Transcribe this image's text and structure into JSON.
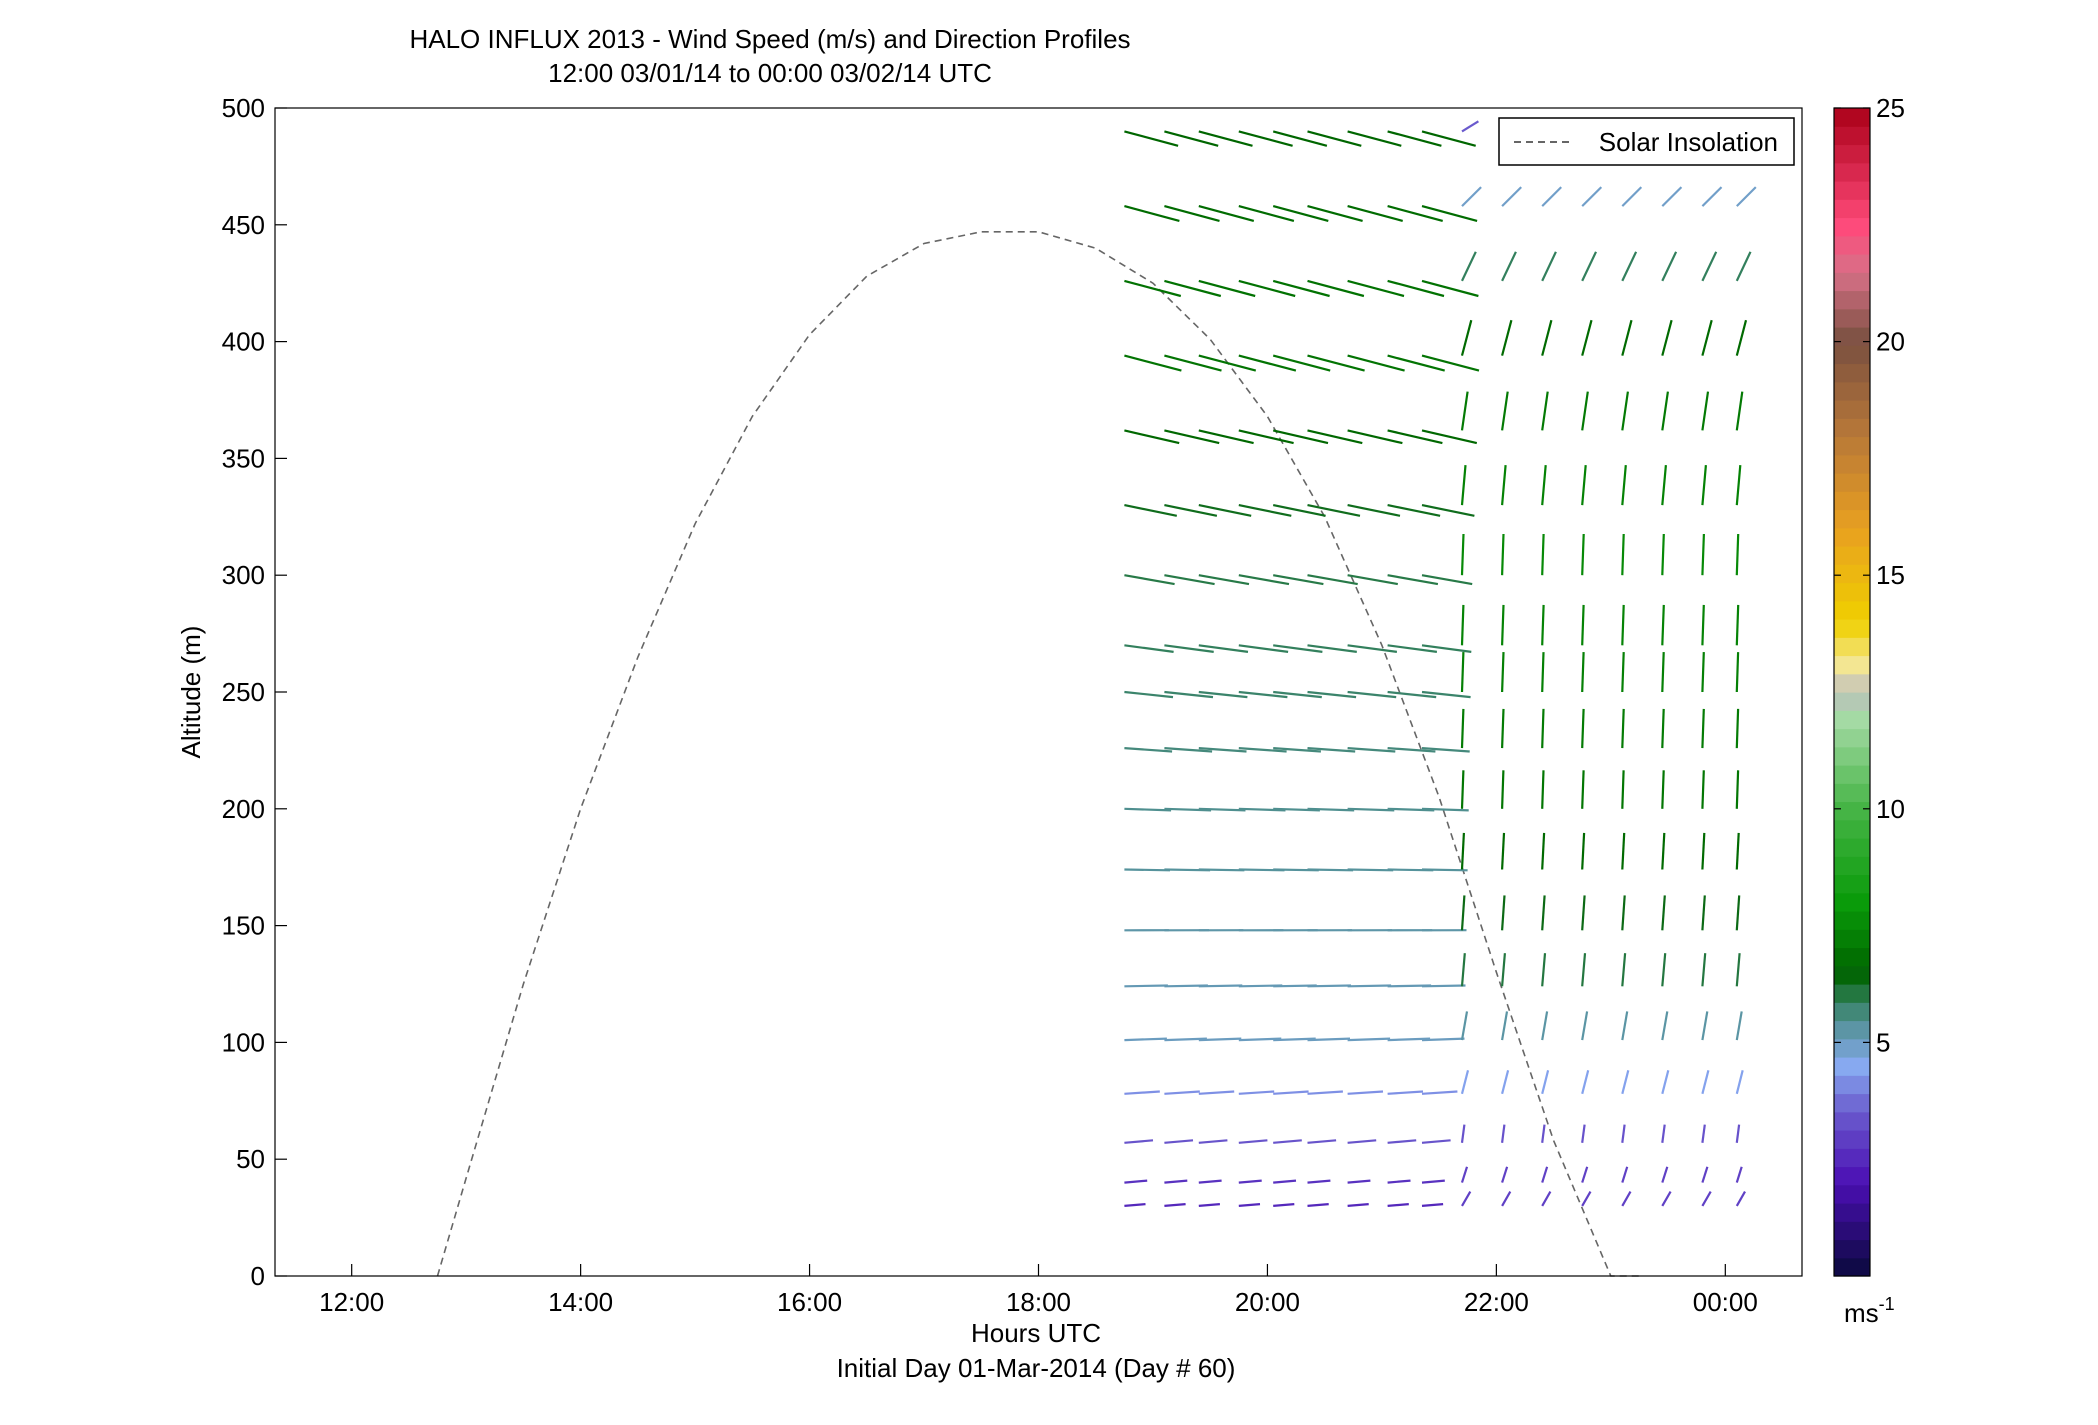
{
  "chart_data": {
    "type": "quiver",
    "title_line1": "HALO INFLUX 2013 - Wind Speed (m/s) and Direction Profiles",
    "title_line2": "12:00 03/01/14 to 00:00 03/02/14  UTC",
    "xlabel": "Hours UTC",
    "xlabel2": "Initial Day 01-Mar-2014 (Day # 60)",
    "ylabel": "Altitude (m)",
    "xlim": [
      11.33,
      24.67
    ],
    "ylim": [
      0,
      500
    ],
    "x_ticks": [
      12,
      14,
      16,
      18,
      20,
      22,
      24
    ],
    "x_tick_labels": [
      "12:00",
      "14:00",
      "16:00",
      "18:00",
      "20:00",
      "22:00",
      "00:00"
    ],
    "y_ticks": [
      0,
      50,
      100,
      150,
      200,
      250,
      300,
      350,
      400,
      450,
      500
    ],
    "y_tick_labels": [
      "0",
      "50",
      "100",
      "150",
      "200",
      "250",
      "300",
      "350",
      "400",
      "450",
      "500"
    ],
    "legend": {
      "label": "Solar Insolation",
      "position": "top-right",
      "line_color": "#666666"
    },
    "colorbar": {
      "min": 0,
      "max": 25,
      "ticks": [
        5,
        10,
        15,
        20,
        25
      ],
      "tick_labels": [
        "5",
        "10",
        "15",
        "20",
        "25"
      ],
      "unit_label": "ms",
      "unit_exponent": "-1",
      "colormap": [
        [
          0,
          "#0a0a3c"
        ],
        [
          2,
          "#4b0fb4"
        ],
        [
          3.5,
          "#6a5acd"
        ],
        [
          4.5,
          "#87aaf0"
        ],
        [
          5.5,
          "#4f8f8f"
        ],
        [
          6.5,
          "#006400"
        ],
        [
          8,
          "#0a9b0a"
        ],
        [
          10,
          "#46b446"
        ],
        [
          12,
          "#a8dca8"
        ],
        [
          12.5,
          "#bcbcbc"
        ],
        [
          13,
          "#f3e8a0"
        ],
        [
          14,
          "#f0d000"
        ],
        [
          16,
          "#e8a020"
        ],
        [
          18,
          "#b87838"
        ],
        [
          20,
          "#7a5040"
        ],
        [
          21.5,
          "#d87088"
        ],
        [
          22.5,
          "#ff4a7a"
        ],
        [
          25,
          "#aa0018"
        ]
      ]
    },
    "solar_insolation": {
      "x": [
        12.75,
        13.0,
        13.5,
        14.0,
        14.5,
        15.0,
        15.5,
        16.0,
        16.5,
        17.0,
        17.5,
        18.0,
        18.5,
        19.0,
        19.5,
        20.0,
        20.5,
        21.0,
        21.5,
        22.0,
        22.5,
        23.0,
        23.25
      ],
      "y": [
        0,
        42,
        125,
        200,
        265,
        322,
        368,
        403,
        428,
        442,
        447,
        447,
        440,
        425,
        401,
        368,
        325,
        270,
        205,
        130,
        58,
        0,
        0
      ]
    },
    "wind_vectors": {
      "times": [
        18.75,
        19.1,
        19.4,
        19.75,
        20.05,
        20.35,
        20.7,
        21.05,
        21.35,
        21.7,
        22.05,
        22.4,
        22.75,
        23.1,
        23.45,
        23.8,
        24.1
      ],
      "altitudes": [
        490,
        458,
        426,
        394,
        362,
        330,
        300,
        270,
        250,
        226,
        200,
        174,
        148,
        124,
        101,
        78,
        57,
        40,
        30
      ],
      "east_end_time": 21.67,
      "north_regime_profile": [
        {
          "z": 500,
          "direction_deg": 120,
          "speed_ms": 3.0
        },
        {
          "z": 470,
          "direction_deg": 125,
          "speed_ms": 4.5
        },
        {
          "z": 440,
          "direction_deg": 150,
          "speed_ms": 5.5
        },
        {
          "z": 380,
          "direction_deg": 170,
          "speed_ms": 7.0
        },
        {
          "z": 300,
          "direction_deg": 178,
          "speed_ms": 7.5
        },
        {
          "z": 200,
          "direction_deg": 178,
          "speed_ms": 7.0
        },
        {
          "z": 120,
          "direction_deg": 175,
          "speed_ms": 6.0
        },
        {
          "z": 80,
          "direction_deg": 165,
          "speed_ms": 4.5
        },
        {
          "z": 50,
          "direction_deg": 175,
          "speed_ms": 3.0
        },
        {
          "z": 30,
          "direction_deg": 150,
          "speed_ms": 3.0
        }
      ],
      "east_regime_profile": [
        {
          "z": 500,
          "direction_deg": 75,
          "speed_ms": 6.5
        },
        {
          "z": 400,
          "direction_deg": 75,
          "speed_ms": 7.0
        },
        {
          "z": 300,
          "direction_deg": 80,
          "speed_ms": 6.0
        },
        {
          "z": 200,
          "direction_deg": 88,
          "speed_ms": 5.5
        },
        {
          "z": 100,
          "direction_deg": 92,
          "speed_ms": 5.0
        },
        {
          "z": 60,
          "direction_deg": 95,
          "speed_ms": 3.5
        },
        {
          "z": 35,
          "direction_deg": 95,
          "speed_ms": 2.5
        }
      ]
    }
  }
}
